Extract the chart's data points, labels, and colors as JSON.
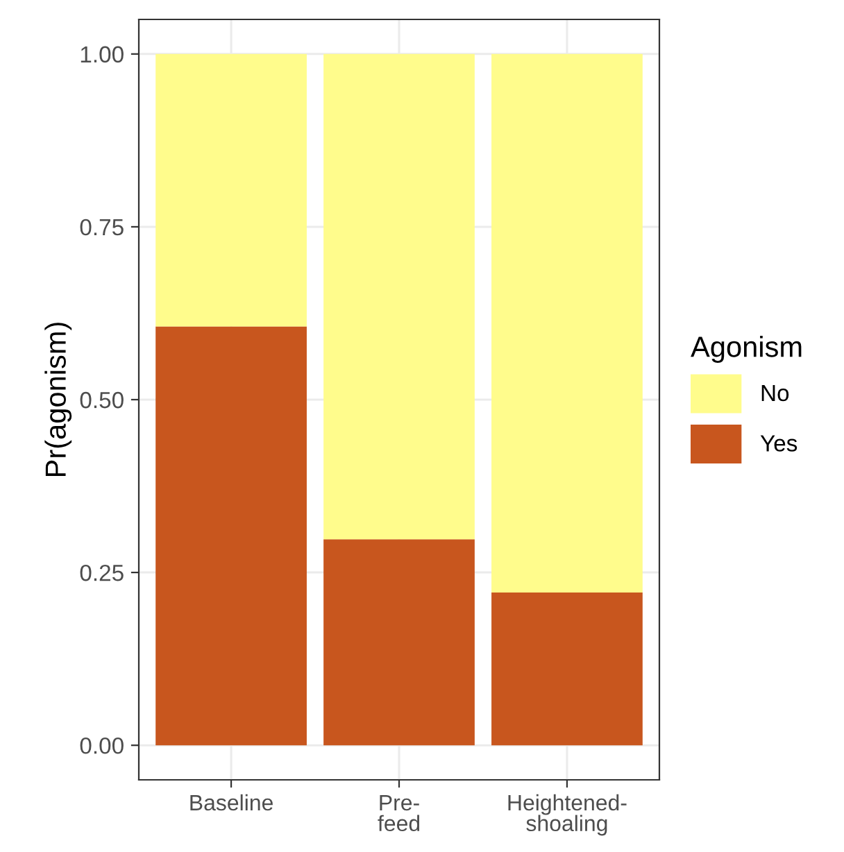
{
  "chart_data": {
    "type": "bar",
    "stacked": true,
    "ylabel": "Pr(agonism)",
    "legend_title": "Agonism",
    "categories": [
      "Baseline",
      "Pre-\nfeed",
      "Heightened-\nshoaling"
    ],
    "series": [
      {
        "name": "Yes",
        "color": "#c8561e",
        "values": [
          0.606,
          0.298,
          0.221
        ]
      },
      {
        "name": "No",
        "color": "#fffc8c",
        "values": [
          0.394,
          0.702,
          0.779
        ]
      }
    ],
    "ylim": [
      -0.05,
      1.05
    ],
    "yticks": [
      {
        "value": 0,
        "label": "0.00"
      },
      {
        "value": 0.25,
        "label": "0.25"
      },
      {
        "value": 0.5,
        "label": "0.50"
      },
      {
        "value": 0.75,
        "label": "0.75"
      },
      {
        "value": 1,
        "label": "1.00"
      }
    ],
    "grid": true,
    "legend": "right"
  }
}
